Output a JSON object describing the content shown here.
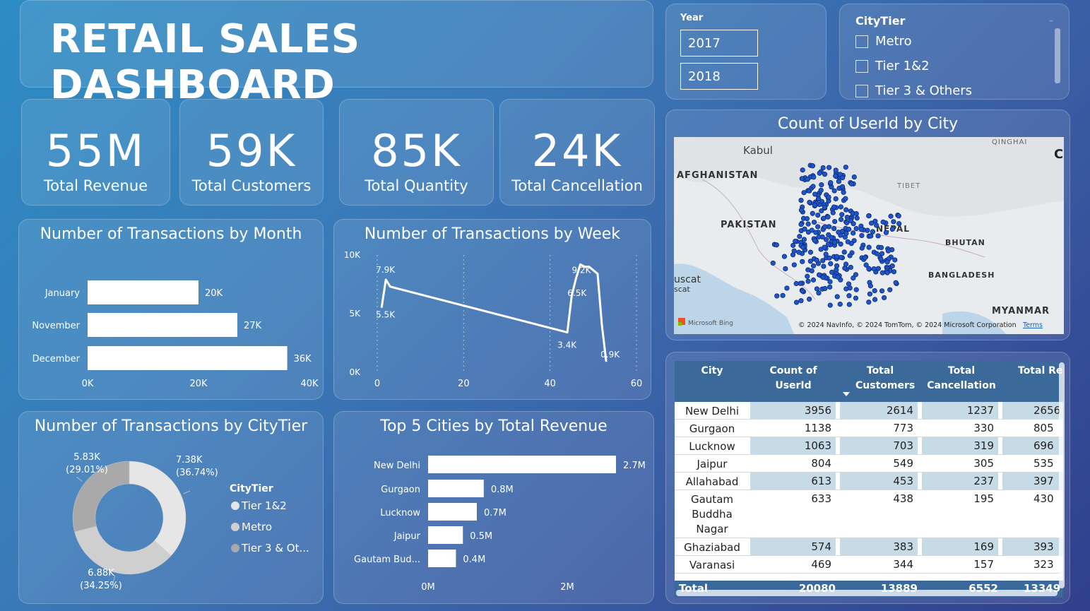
{
  "header": {
    "title": "RETAIL SALES DASHBOARD"
  },
  "kpis": [
    {
      "value": "55M",
      "label": "Total Revenue"
    },
    {
      "value": "59K",
      "label": "Total Customers"
    },
    {
      "value": "85K",
      "label": "Total Quantity"
    },
    {
      "value": "24K",
      "label": "Total Cancellation"
    }
  ],
  "year_slicer": {
    "label": "Year",
    "options": [
      "2017",
      "2018"
    ]
  },
  "citytier_slicer": {
    "label": "CityTier",
    "options": [
      "Metro",
      "Tier 1&2",
      "Tier 3 & Others"
    ]
  },
  "map": {
    "title": "Count of UserId by City",
    "labels": [
      "Kabul",
      "AFGHANISTAN",
      "PAKISTAN",
      "TIBET",
      "NEPAL",
      "BHUTAN",
      "BANGLADESH",
      "MYANMAR",
      "QINGHAI",
      "C",
      "uscat",
      "scat"
    ],
    "brand": "Microsoft Bing",
    "copyright": "© 2024 NavInfo, © 2024 TomTom, © 2024 Microsoft Corporation",
    "terms": "Terms"
  },
  "month_chart": {
    "title": "Number of Transactions by Month",
    "tick_labels": [
      "0K",
      "20K",
      "40K"
    ]
  },
  "week_chart": {
    "title": "Number of Transactions by Week",
    "y_tick_labels": [
      "10K",
      "5K",
      "0K"
    ],
    "x_tick_labels": [
      "0",
      "20",
      "40",
      "60"
    ]
  },
  "tier_chart": {
    "title": "Number of Transactions by CityTier",
    "legend_title": "CityTier",
    "legend": [
      "Tier 1&2",
      "Metro",
      "Tier 3 & Ot..."
    ]
  },
  "city_chart": {
    "title": "Top 5 Cities by Total Revenue",
    "tick_labels": [
      "0M",
      "2M"
    ]
  },
  "table": {
    "headers": [
      "City",
      "Count of UserId",
      "Total Customers",
      "Total Cancellation",
      "Total Revenu"
    ],
    "rows": [
      [
        "New Delhi",
        "3956",
        "2614",
        "1237",
        "2656"
      ],
      [
        "Gurgaon",
        "1138",
        "773",
        "330",
        "805"
      ],
      [
        "Lucknow",
        "1063",
        "703",
        "319",
        "696"
      ],
      [
        "Jaipur",
        "804",
        "549",
        "305",
        "535"
      ],
      [
        "Allahabad",
        "613",
        "453",
        "237",
        "397"
      ],
      [
        "Gautam Buddha Nagar",
        "633",
        "438",
        "195",
        "430"
      ],
      [
        "Ghaziabad",
        "574",
        "383",
        "169",
        "393"
      ],
      [
        "Varanasi",
        "469",
        "344",
        "157",
        "323"
      ]
    ],
    "total": [
      "Total",
      "20080",
      "13889",
      "6552",
      "13349"
    ]
  },
  "chart_data": [
    {
      "type": "bar",
      "title": "Number of Transactions by Month",
      "categories": [
        "January",
        "November",
        "December"
      ],
      "values": [
        20,
        27,
        36
      ],
      "data_labels": [
        "20K",
        "27K",
        "36K"
      ],
      "unit": "K",
      "xlim": [
        0,
        40
      ]
    },
    {
      "type": "line",
      "title": "Number of Transactions by Week",
      "x": [
        1,
        2,
        3,
        44,
        45,
        46,
        47,
        48,
        49,
        50,
        51,
        52,
        53
      ],
      "values": [
        5.5,
        7.9,
        7.3,
        3.4,
        6.5,
        8.0,
        9.2,
        9.0,
        9.0,
        8.7,
        8.4,
        4.0,
        0.9
      ],
      "data_labels": [
        {
          "x": 1,
          "text": "5.5K"
        },
        {
          "x": 2,
          "text": "7.9K"
        },
        {
          "x": 44,
          "text": "3.4K"
        },
        {
          "x": 45,
          "text": "6.5K"
        },
        {
          "x": 47,
          "text": "9.2K"
        },
        {
          "x": 53,
          "text": "0.9K"
        }
      ],
      "xlim": [
        0,
        60
      ],
      "ylim": [
        0,
        10
      ],
      "grid": "vertical dotted"
    },
    {
      "type": "pie",
      "title": "Number of Transactions by CityTier",
      "categories": [
        "Tier 1&2",
        "Metro",
        "Tier 3 & Ot..."
      ],
      "values": [
        7.38,
        6.88,
        5.83
      ],
      "data_labels": [
        "7.38K\n(36.74%)",
        "6.88K\n(34.25%)",
        "5.83K\n(29.01%)"
      ],
      "colors": [
        "#e6e6e6",
        "#cfcfcf",
        "#a9a9a9"
      ],
      "legend_placement": "right"
    },
    {
      "type": "bar",
      "title": "Top 5 Cities by Total Revenue",
      "categories": [
        "New Delhi",
        "Gurgaon",
        "Lucknow",
        "Jaipur",
        "Gautam Bud..."
      ],
      "values": [
        2.7,
        0.8,
        0.7,
        0.5,
        0.4
      ],
      "data_labels": [
        "2.7M",
        "0.8M",
        "0.7M",
        "0.5M",
        "0.4M"
      ],
      "unit": "M",
      "xlim": [
        0,
        2.7
      ]
    }
  ]
}
